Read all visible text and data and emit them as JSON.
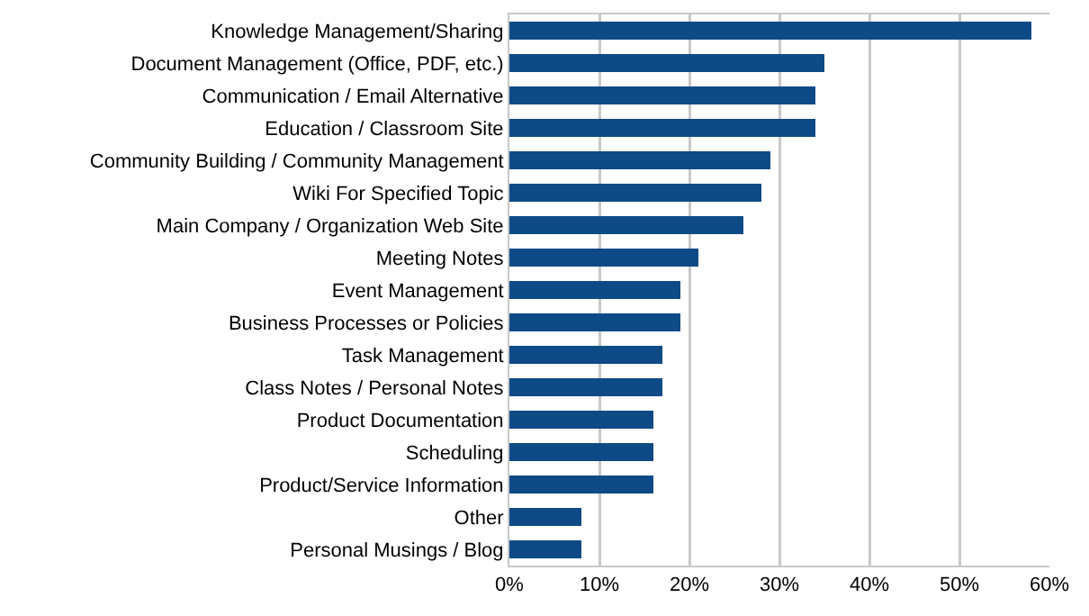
{
  "chart_data": {
    "type": "bar",
    "orientation": "horizontal",
    "categories": [
      "Knowledge Management/Sharing",
      "Document Management (Office, PDF, etc.)",
      "Communication / Email Alternative",
      "Education / Classroom Site",
      "Community Building / Community Management",
      "Wiki For Specified Topic",
      "Main Company / Organization Web Site",
      "Meeting Notes",
      "Event Management",
      "Business Processes or Policies",
      "Task Management",
      "Class Notes / Personal Notes",
      "Product Documentation",
      "Scheduling",
      "Product/Service Information",
      "Other",
      "Personal Musings / Blog"
    ],
    "values": [
      58,
      35,
      34,
      34,
      29,
      28,
      26,
      21,
      19,
      19,
      17,
      17,
      16,
      16,
      16,
      8,
      8
    ],
    "color": "#0e4a86",
    "xlim": [
      0,
      60
    ],
    "xticks": [
      {
        "value": 0,
        "label": "0%"
      },
      {
        "value": 10,
        "label": "10%"
      },
      {
        "value": 20,
        "label": "20%"
      },
      {
        "value": 30,
        "label": "30%"
      },
      {
        "value": 40,
        "label": "40%"
      },
      {
        "value": 50,
        "label": "50%"
      },
      {
        "value": 60,
        "label": "60%"
      }
    ],
    "grid": "x",
    "legend": false
  }
}
